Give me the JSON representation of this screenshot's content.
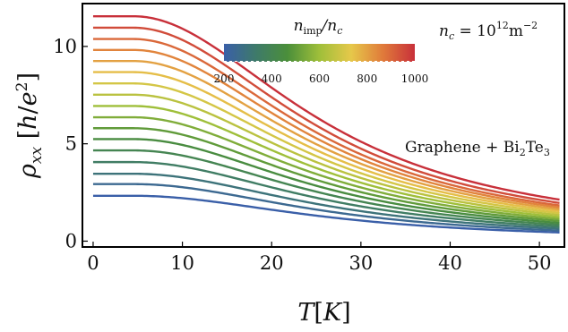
{
  "chart_data": {
    "type": "line",
    "xlabel": "T[K]",
    "ylabel": "ρxx [h/e²]",
    "xlim": [
      -1.2,
      52.8
    ],
    "ylim": [
      -0.3,
      12.2
    ],
    "x_ticks": [
      0,
      10,
      20,
      30,
      40,
      50
    ],
    "y_ticks": [
      0,
      5,
      10
    ],
    "grid": false,
    "annotations": {
      "nc": "n_c = 10^12 m^-2",
      "material": "Graphene + Bi2Te3"
    },
    "colorbar": {
      "label": "n_imp/n_c",
      "min": 200,
      "max": 1000,
      "ticks": [
        200,
        400,
        600,
        800,
        1000
      ],
      "colors": [
        "#3a5fa8",
        "#3e7a6a",
        "#4b8f3a",
        "#9fbf3a",
        "#e6c84a",
        "#e07a3a",
        "#c8303a"
      ]
    },
    "series_params": {
      "n_imp_over_nc": [
        200,
        250,
        300,
        350,
        400,
        450,
        500,
        550,
        600,
        650,
        700,
        750,
        800,
        850,
        900,
        950,
        1000
      ],
      "rho_at_T0": [
        2.33,
        2.93,
        3.46,
        4.06,
        4.66,
        5.24,
        5.8,
        6.36,
        6.94,
        7.52,
        8.1,
        8.68,
        9.25,
        9.82,
        10.38,
        10.96,
        11.55
      ],
      "rho_at_T52": [
        0.45,
        0.55,
        0.65,
        0.75,
        0.85,
        0.95,
        1.05,
        1.15,
        1.25,
        1.35,
        1.45,
        1.55,
        1.65,
        1.75,
        1.85,
        1.98,
        2.15
      ]
    }
  }
}
